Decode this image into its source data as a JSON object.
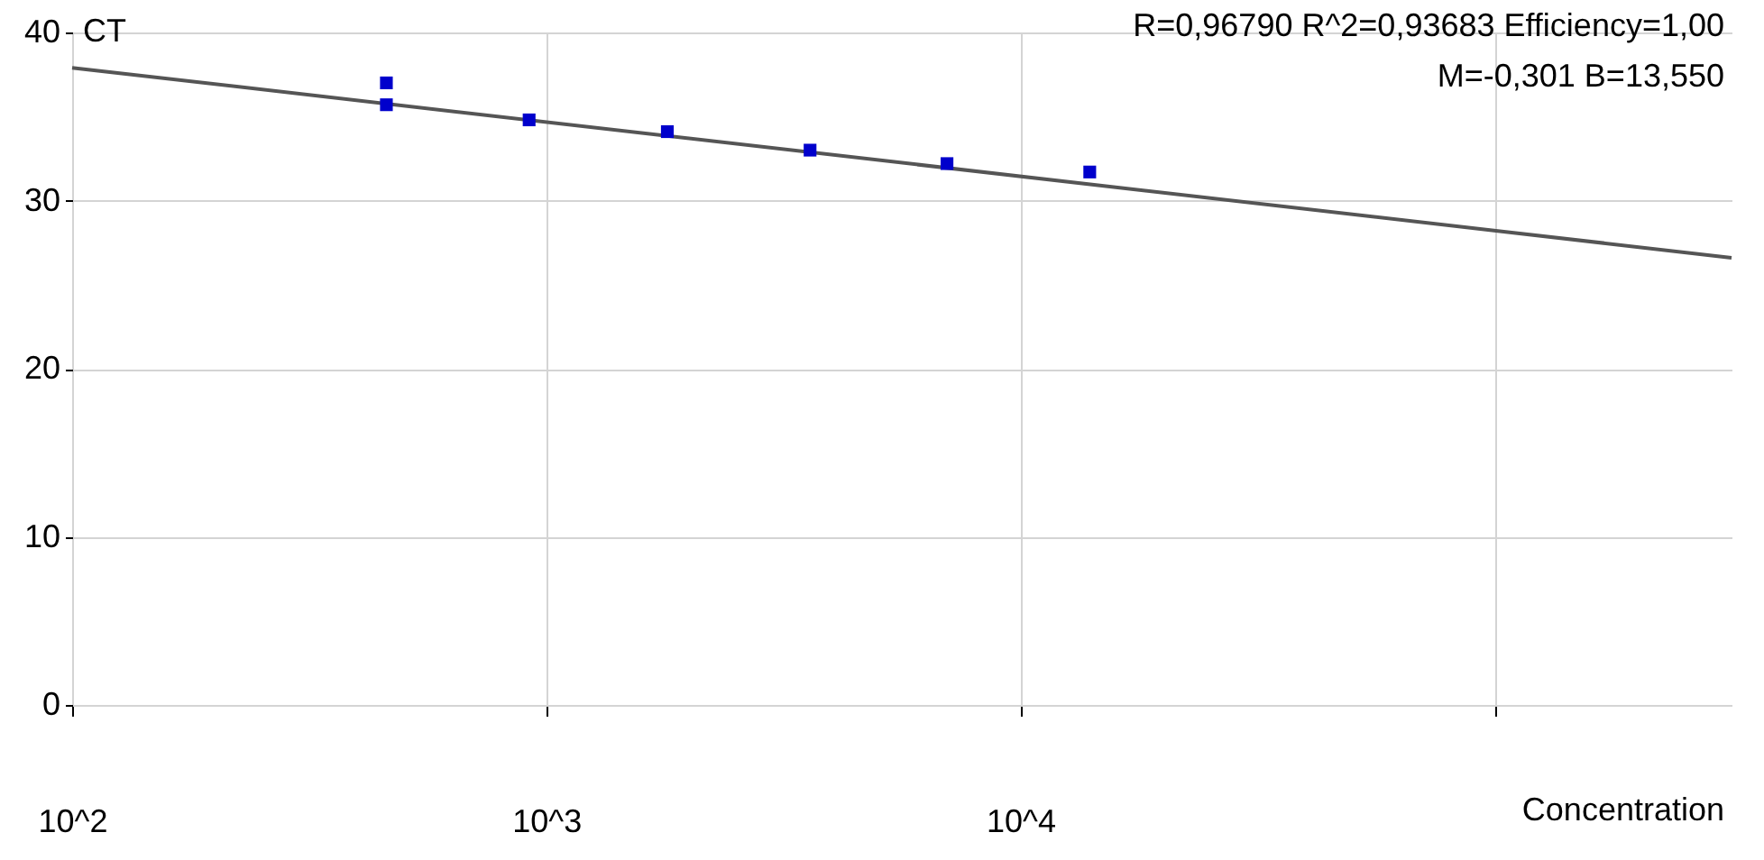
{
  "chart_data": {
    "type": "scatter",
    "xlabel": "Concentration",
    "ylabel": "CT",
    "log": "x",
    "grid": true,
    "marker": "square",
    "xlim": [
      100,
      316000
    ],
    "ylim": [
      0,
      40
    ],
    "xticks": [
      {
        "value": 100,
        "label": "10^2"
      },
      {
        "value": 1000,
        "label": "10^3"
      },
      {
        "value": 10000,
        "label": "10^4"
      },
      {
        "value": 100000,
        "label": null
      }
    ],
    "yticks": [
      0,
      10,
      20,
      30,
      40
    ],
    "series": [
      {
        "type": "line",
        "marker": "none",
        "color": "#555555",
        "x": [
          100,
          316000
        ],
        "values": [
          37.9,
          26.6
        ]
      },
      {
        "color": "#0000cc",
        "x": [
          460,
          460,
          920,
          1800,
          3600,
          7000,
          14000
        ],
        "values": [
          37.0,
          35.7,
          34.8,
          34.1,
          33.0,
          32.2,
          31.7
        ]
      }
    ],
    "annotations": [
      "R=0,96790  R^2=0,93683  Efficiency=1,00",
      "M=-0,301  B=13,550"
    ]
  }
}
